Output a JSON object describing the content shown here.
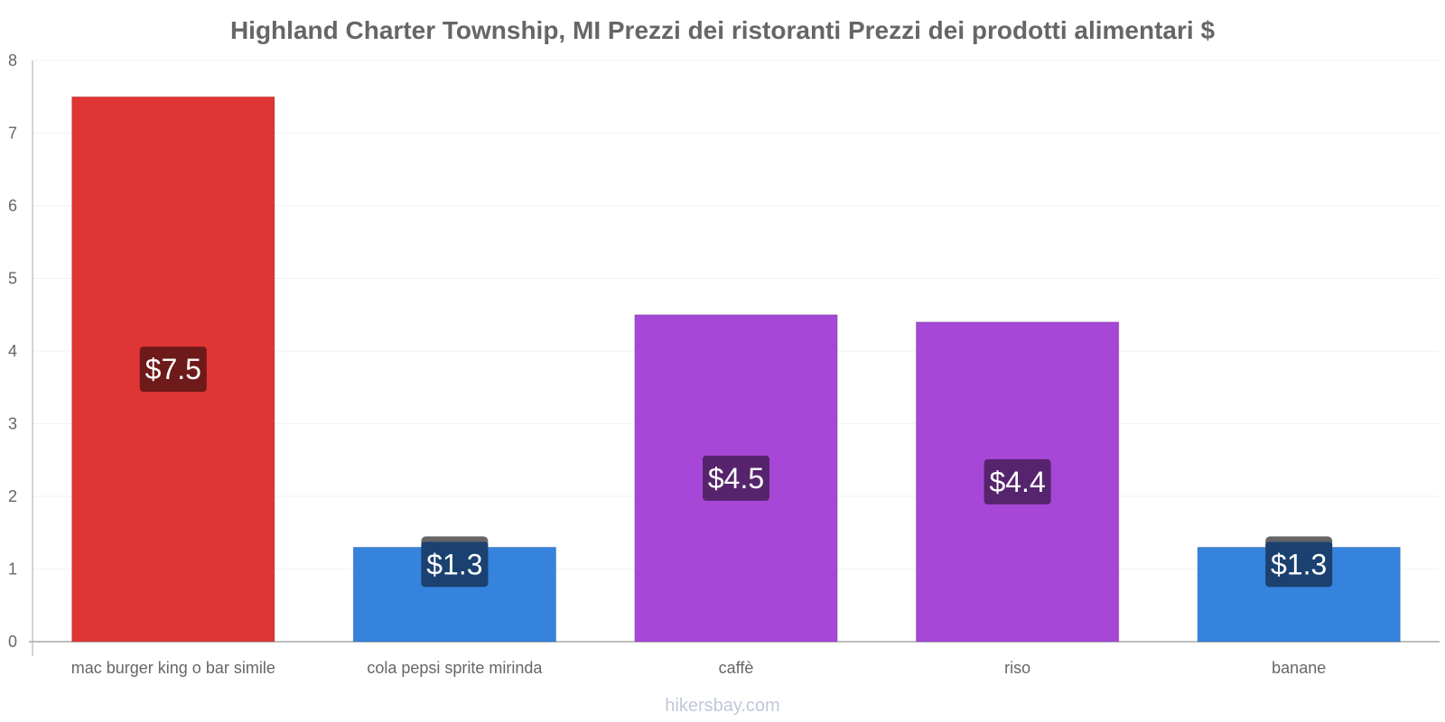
{
  "chart_data": {
    "type": "bar",
    "title": "Highland Charter Township, MI Prezzi dei ristoranti Prezzi dei prodotti alimentari $",
    "categories": [
      "mac burger king o bar simile",
      "cola pepsi sprite mirinda",
      "caffè",
      "riso",
      "banane"
    ],
    "values": [
      7.5,
      1.3,
      4.5,
      4.4,
      1.3
    ],
    "value_labels": [
      "$7.5",
      "$1.3",
      "$4.5",
      "$4.4",
      "$1.3"
    ],
    "bar_colors": [
      "#e03535",
      "#3583dd",
      "#a647d8",
      "#a647d8",
      "#3583dd"
    ],
    "label_bg_colors": [
      "#6e1a1a",
      "#1a4170",
      "#56246c",
      "#56246c",
      "#1a4170"
    ],
    "ylim": [
      0,
      8
    ],
    "yticks": [
      "0",
      "1",
      "2",
      "3",
      "4",
      "5",
      "6",
      "7",
      "8"
    ],
    "xlabel": "",
    "ylabel": "",
    "grid": true,
    "legend": "none"
  },
  "footer": {
    "source": "hikersbay.com"
  }
}
